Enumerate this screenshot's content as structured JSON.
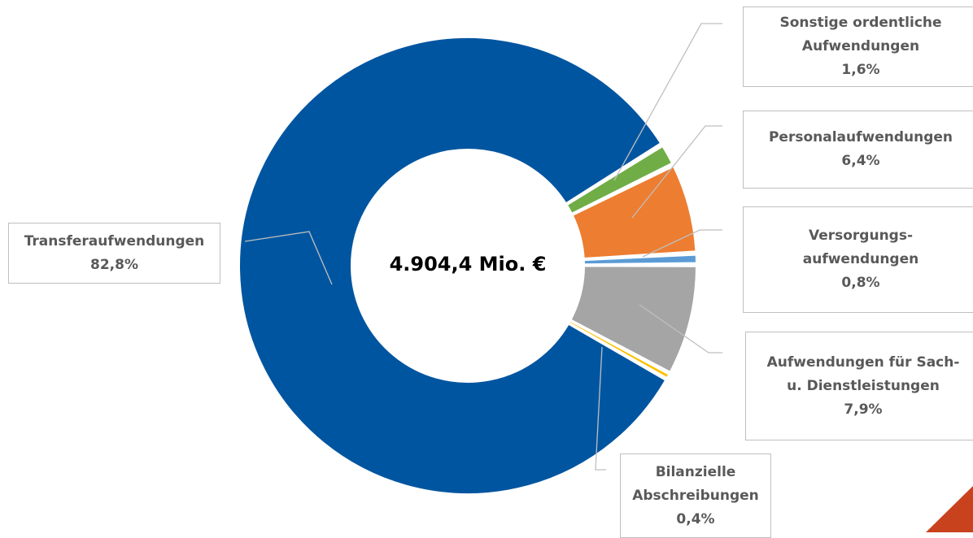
{
  "chart_data": {
    "type": "pie",
    "variant": "donut",
    "center_total": "4.904,4 Mio. €",
    "slices": [
      {
        "label_lines": [
          "Sonstige ordentliche",
          "Aufwendungen"
        ],
        "percent_label": "1,6%",
        "value": 1.6,
        "color": "#70ad47"
      },
      {
        "label_lines": [
          "Personalaufwendungen"
        ],
        "percent_label": "6,4%",
        "value": 6.4,
        "color": "#ed7d31"
      },
      {
        "label_lines": [
          "Versorgungs-",
          "aufwendungen"
        ],
        "percent_label": "0,8%",
        "value": 0.8,
        "color": "#5b9bd5"
      },
      {
        "label_lines": [
          "Aufwendungen für Sach-",
          "u. Dienstleistungen"
        ],
        "percent_label": "7,9%",
        "value": 7.9,
        "color": "#a5a5a5"
      },
      {
        "label_lines": [
          "Bilanzielle",
          "Abschreibungen"
        ],
        "percent_label": "0,4%",
        "value": 0.4,
        "color": "#ffc000"
      },
      {
        "label_lines": [
          "Transferaufwendungen"
        ],
        "percent_label": "82,8%",
        "value": 82.8,
        "color": "#0055a0"
      }
    ]
  },
  "decoration": {
    "corner_color": "#c9421e"
  }
}
